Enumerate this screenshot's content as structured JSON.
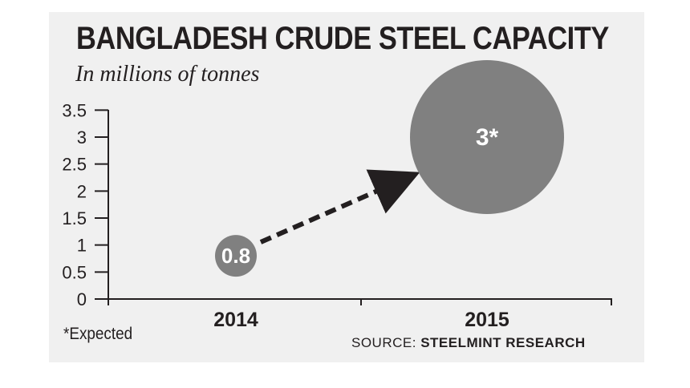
{
  "colors": {
    "panel": "#f0f0f0",
    "bubble": "#808080",
    "text": "#231f20",
    "arrow": "#231f20"
  },
  "chart_data": {
    "type": "scatter",
    "title": "BANGLADESH CRUDE STEEL CAPACITY",
    "subtitle": "In millions of tonnes",
    "categories": [
      "2014",
      "2015"
    ],
    "values": [
      0.8,
      3
    ],
    "point_labels": [
      "0.8",
      "3*"
    ],
    "y_ticks": [
      "0",
      "0.5",
      "1",
      "1.5",
      "2",
      "2.5",
      "3",
      "3.5"
    ],
    "ylim": [
      0,
      3.5
    ],
    "marker_size_encodes_value": true,
    "connector": "dashed arrow from 2014 to 2015",
    "footnote": "*Expected",
    "source_prefix": "SOURCE:",
    "source_name": "STEELMINT RESEARCH"
  }
}
